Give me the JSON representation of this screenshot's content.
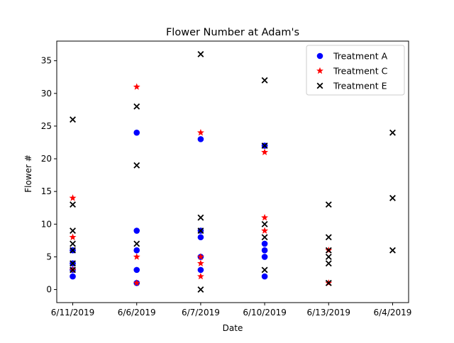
{
  "chart_data": {
    "type": "scatter",
    "title": "Flower Number at Adam's",
    "xlabel": "Date",
    "ylabel": "Flower #",
    "categories": [
      "6/11/2019",
      "6/6/2019",
      "6/7/2019",
      "6/10/2019",
      "6/13/2019",
      "6/4/2019"
    ],
    "ylim": [
      -2,
      38
    ],
    "yticks": [
      0,
      5,
      10,
      15,
      20,
      25,
      30,
      35
    ],
    "grid": false,
    "legend_position": "top-right",
    "series": [
      {
        "name": "Treatment A",
        "marker": "circle",
        "color": "#0000ff",
        "points": [
          [
            "6/11/2019",
            2
          ],
          [
            "6/11/2019",
            3
          ],
          [
            "6/11/2019",
            4
          ],
          [
            "6/11/2019",
            6
          ],
          [
            "6/6/2019",
            1
          ],
          [
            "6/6/2019",
            3
          ],
          [
            "6/6/2019",
            6
          ],
          [
            "6/6/2019",
            9
          ],
          [
            "6/6/2019",
            24
          ],
          [
            "6/7/2019",
            3
          ],
          [
            "6/7/2019",
            5
          ],
          [
            "6/7/2019",
            8
          ],
          [
            "6/7/2019",
            9
          ],
          [
            "6/7/2019",
            23
          ],
          [
            "6/10/2019",
            2
          ],
          [
            "6/10/2019",
            5
          ],
          [
            "6/10/2019",
            6
          ],
          [
            "6/10/2019",
            7
          ],
          [
            "6/10/2019",
            22
          ]
        ]
      },
      {
        "name": "Treatment C",
        "marker": "star",
        "color": "#ff0000",
        "points": [
          [
            "6/11/2019",
            3
          ],
          [
            "6/11/2019",
            8
          ],
          [
            "6/11/2019",
            14
          ],
          [
            "6/6/2019",
            1
          ],
          [
            "6/6/2019",
            5
          ],
          [
            "6/6/2019",
            31
          ],
          [
            "6/7/2019",
            2
          ],
          [
            "6/7/2019",
            4
          ],
          [
            "6/7/2019",
            5
          ],
          [
            "6/7/2019",
            24
          ],
          [
            "6/10/2019",
            9
          ],
          [
            "6/10/2019",
            11
          ],
          [
            "6/10/2019",
            21
          ],
          [
            "6/13/2019",
            1
          ],
          [
            "6/13/2019",
            6
          ]
        ]
      },
      {
        "name": "Treatment E",
        "marker": "x",
        "color": "#000000",
        "points": [
          [
            "6/11/2019",
            3
          ],
          [
            "6/11/2019",
            4
          ],
          [
            "6/11/2019",
            6
          ],
          [
            "6/11/2019",
            7
          ],
          [
            "6/11/2019",
            9
          ],
          [
            "6/11/2019",
            13
          ],
          [
            "6/11/2019",
            26
          ],
          [
            "6/6/2019",
            7
          ],
          [
            "6/6/2019",
            19
          ],
          [
            "6/6/2019",
            28
          ],
          [
            "6/7/2019",
            0
          ],
          [
            "6/7/2019",
            9
          ],
          [
            "6/7/2019",
            11
          ],
          [
            "6/7/2019",
            36
          ],
          [
            "6/10/2019",
            3
          ],
          [
            "6/10/2019",
            8
          ],
          [
            "6/10/2019",
            10
          ],
          [
            "6/10/2019",
            22
          ],
          [
            "6/10/2019",
            32
          ],
          [
            "6/13/2019",
            1
          ],
          [
            "6/13/2019",
            4
          ],
          [
            "6/13/2019",
            5
          ],
          [
            "6/13/2019",
            6
          ],
          [
            "6/13/2019",
            8
          ],
          [
            "6/13/2019",
            13
          ],
          [
            "6/4/2019",
            6
          ],
          [
            "6/4/2019",
            14
          ],
          [
            "6/4/2019",
            24
          ]
        ]
      }
    ]
  }
}
